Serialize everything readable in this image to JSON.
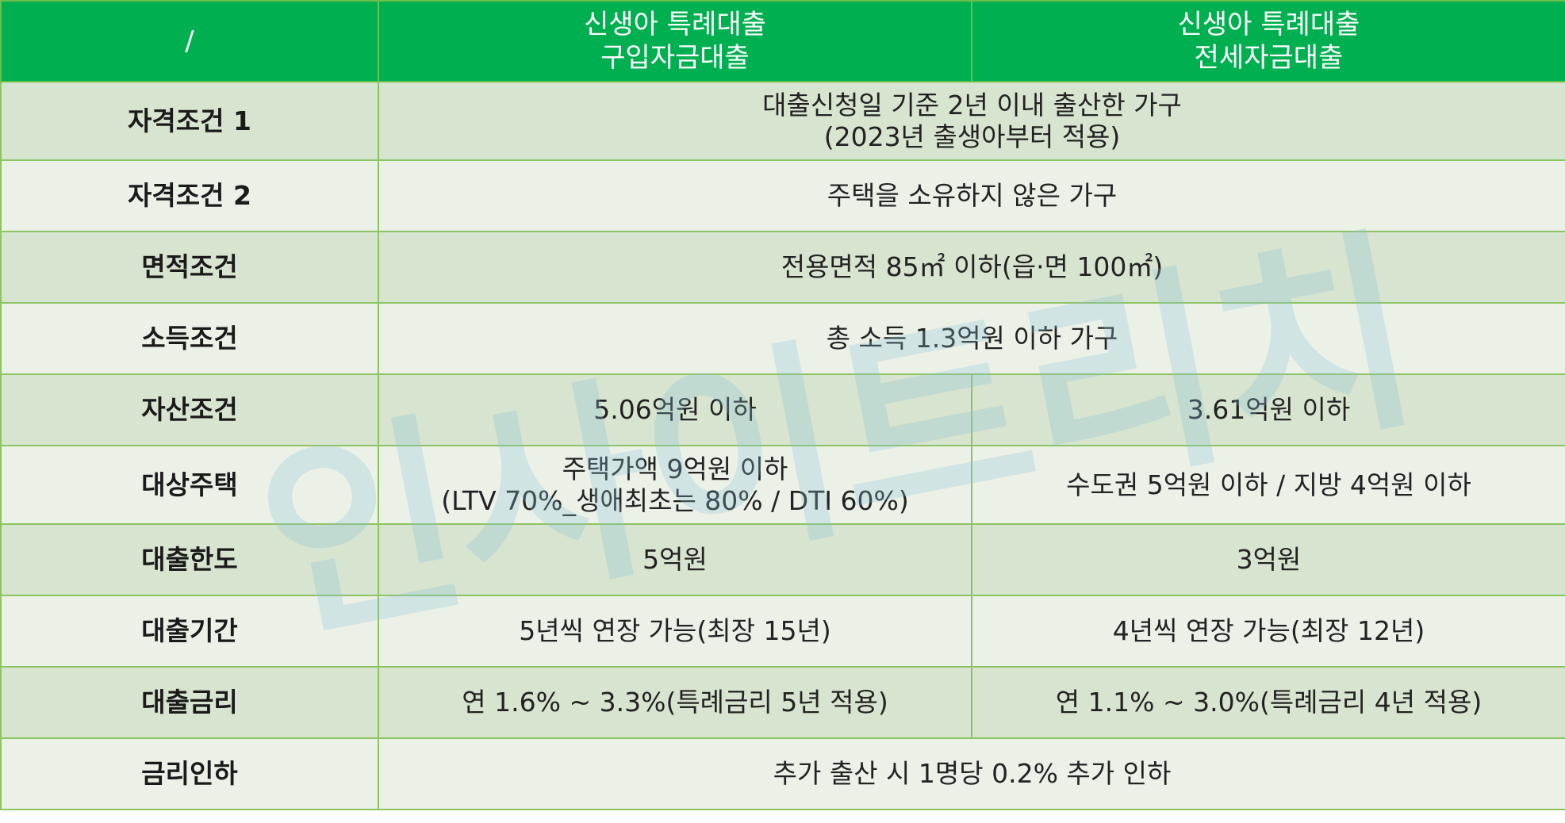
{
  "header": {
    "corner": "/",
    "col_purchase": [
      "신생아 특례대출",
      "구입자금대출"
    ],
    "col_lease": [
      "신생아 특례대출",
      "전세자금대출"
    ]
  },
  "rows": {
    "qual1": {
      "label": "자격조건 1",
      "value": [
        "대출신청일 기준 2년 이내 출산한 가구",
        "(2023년 출생아부터 적용)"
      ]
    },
    "qual2": {
      "label": "자격조건 2",
      "value": "주택을 소유하지 않은 가구"
    },
    "area": {
      "label": "면적조건",
      "value": "전용면적 85㎡ 이하(읍·면 100㎡)"
    },
    "income": {
      "label": "소득조건",
      "value": "총 소득 1.3억원 이하 가구"
    },
    "asset": {
      "label": "자산조건",
      "purchase": "5.06억원 이하",
      "lease": "3.61억원 이하"
    },
    "target": {
      "label": "대상주택",
      "purchase": [
        "주택가액 9억원 이하",
        "(LTV 70%_생애최초는 80% / DTI 60%)"
      ],
      "lease": "수도권 5억원 이하 / 지방 4억원 이하"
    },
    "limit": {
      "label": "대출한도",
      "purchase": "5억원",
      "lease": "3억원"
    },
    "period": {
      "label": "대출기간",
      "purchase": "5년씩 연장 가능(최장 15년)",
      "lease": "4년씩 연장 가능(최장 12년)"
    },
    "rate": {
      "label": "대출금리",
      "purchase": "연 1.6% ~ 3.3%(특례금리 5년 적용)",
      "lease": "연 1.1% ~ 3.0%(특례금리 4년 적용)"
    },
    "cut": {
      "label": "금리인하",
      "value": "추가 출산 시  1명당 0.2% 추가 인하"
    }
  },
  "watermark": "인사이트리치",
  "colors": {
    "header_bg": "#00b050",
    "row_dark": "#d7e4cf",
    "row_light": "#ecf1e8",
    "border": "#8cc461"
  }
}
